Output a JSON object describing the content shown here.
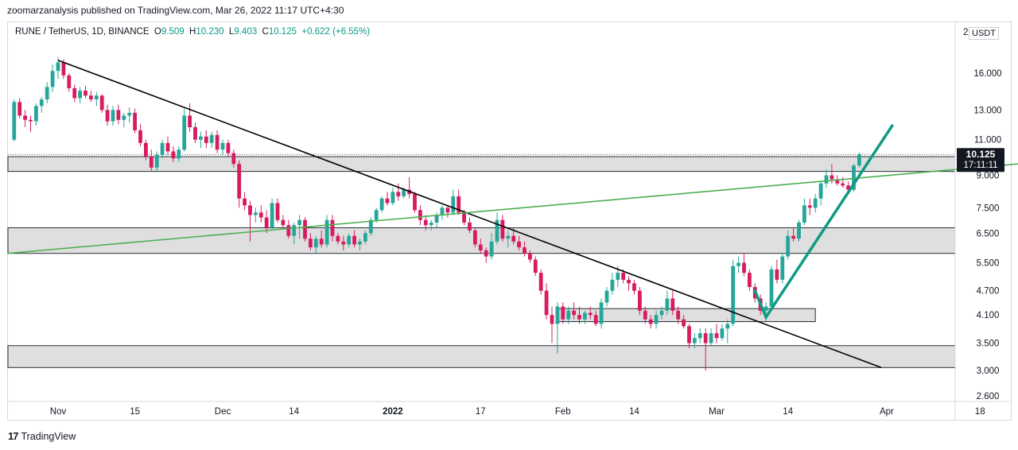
{
  "header": {
    "publisher_text": "zoomarzanalysis published on TradingView.com, Mar 26, 2022 11:17 UTC+4:30"
  },
  "legend": {
    "symbol": "RUNE / TetherUS, 1D, BINANCE",
    "open_label": "O",
    "open": "9.509",
    "high_label": "H",
    "high": "10.230",
    "low_label": "L",
    "low": "9.403",
    "close_label": "C",
    "close": "10.125",
    "change": "+0.622 (+6.55%)"
  },
  "currency_badge": "USDT",
  "price_axis_top_label": "2",
  "footer": {
    "logo": "17",
    "brand": "TradingView"
  },
  "colors": {
    "up": "#26a69a",
    "down": "#d81b60",
    "downtrend_line": "#000000",
    "uptrend_line": "#4caf50",
    "breakout_arrow": "#109a86",
    "zone_fill": "#d9d9d9"
  },
  "chart_data": {
    "type": "candlestick",
    "scale": "log",
    "interval": "1D",
    "y_ticks": [
      "16.000",
      "13.000",
      "11.000",
      "9.000",
      "7.500",
      "6.500",
      "5.500",
      "4.700",
      "4.100",
      "3.500",
      "3.000",
      "2.600"
    ],
    "y_tick_values": [
      16.0,
      13.0,
      11.0,
      9.0,
      7.5,
      6.5,
      5.5,
      4.7,
      4.1,
      3.5,
      3.0,
      2.6
    ],
    "x_ticks": [
      {
        "label": "Nov",
        "date": "2021-11-01",
        "bold": false
      },
      {
        "label": "15",
        "date": "2021-11-15",
        "bold": false
      },
      {
        "label": "Dec",
        "date": "2021-12-01",
        "bold": false
      },
      {
        "label": "14",
        "date": "2021-12-14",
        "bold": false
      },
      {
        "label": "2022",
        "date": "2022-01-01",
        "bold": true
      },
      {
        "label": "17",
        "date": "2022-01-17",
        "bold": false
      },
      {
        "label": "Feb",
        "date": "2022-02-01",
        "bold": false
      },
      {
        "label": "14",
        "date": "2022-02-14",
        "bold": false
      },
      {
        "label": "Mar",
        "date": "2022-03-01",
        "bold": false
      },
      {
        "label": "14",
        "date": "2022-03-14",
        "bold": false
      },
      {
        "label": "Apr",
        "date": "2022-04-01",
        "bold": false
      },
      {
        "label": "18",
        "date": "2022-04-18",
        "bold": false
      }
    ],
    "last_price": {
      "label": "10.125",
      "countdown": "17:11:11"
    },
    "candles": [
      [
        "2021-10-19",
        9.0,
        10.2,
        8.8,
        9.8
      ],
      [
        "2021-10-20",
        9.8,
        10.8,
        9.6,
        10.5
      ],
      [
        "2021-10-21",
        10.5,
        12.2,
        10.3,
        11.8
      ],
      [
        "2021-10-22",
        11.8,
        12.5,
        11.0,
        11.3
      ],
      [
        "2021-10-23",
        11.3,
        12.0,
        10.6,
        11.0
      ],
      [
        "2021-10-24",
        11.0,
        13.8,
        10.9,
        13.6
      ],
      [
        "2021-10-25",
        13.6,
        13.9,
        12.4,
        12.6
      ],
      [
        "2021-10-26",
        12.6,
        13.0,
        11.8,
        12.3
      ],
      [
        "2021-10-27",
        12.3,
        12.6,
        11.5,
        12.2
      ],
      [
        "2021-10-28",
        12.2,
        13.5,
        11.9,
        13.3
      ],
      [
        "2021-10-29",
        13.3,
        14.0,
        12.8,
        13.8
      ],
      [
        "2021-10-30",
        13.8,
        15.2,
        13.5,
        14.8
      ],
      [
        "2021-10-31",
        14.8,
        16.8,
        14.4,
        16.2
      ],
      [
        "2021-11-01",
        16.2,
        17.5,
        15.5,
        17.0
      ],
      [
        "2021-11-02",
        17.0,
        17.3,
        15.5,
        15.8
      ],
      [
        "2021-11-03",
        15.8,
        16.0,
        14.4,
        14.7
      ],
      [
        "2021-11-04",
        14.7,
        15.0,
        13.6,
        13.9
      ],
      [
        "2021-11-05",
        13.9,
        14.8,
        13.5,
        14.5
      ],
      [
        "2021-11-06",
        14.5,
        14.9,
        13.9,
        14.1
      ],
      [
        "2021-11-07",
        14.1,
        14.5,
        13.6,
        13.8
      ],
      [
        "2021-11-08",
        13.8,
        14.4,
        13.3,
        14.1
      ],
      [
        "2021-11-09",
        14.1,
        14.2,
        12.8,
        13.0
      ],
      [
        "2021-11-10",
        13.0,
        13.4,
        11.9,
        12.2
      ],
      [
        "2021-11-11",
        12.2,
        13.3,
        11.9,
        13.0
      ],
      [
        "2021-11-12",
        13.0,
        13.4,
        12.0,
        12.3
      ],
      [
        "2021-11-13",
        12.3,
        12.8,
        11.8,
        12.6
      ],
      [
        "2021-11-14",
        12.6,
        13.2,
        12.1,
        12.8
      ],
      [
        "2021-11-15",
        12.8,
        13.1,
        11.4,
        11.6
      ],
      [
        "2021-11-16",
        11.6,
        12.0,
        10.6,
        10.8
      ],
      [
        "2021-11-17",
        10.8,
        11.0,
        9.8,
        10.0
      ],
      [
        "2021-11-18",
        10.0,
        10.4,
        9.2,
        9.4
      ],
      [
        "2021-11-19",
        9.4,
        10.3,
        9.2,
        10.1
      ],
      [
        "2021-11-20",
        10.1,
        11.0,
        9.9,
        10.8
      ],
      [
        "2021-11-21",
        10.8,
        11.2,
        10.1,
        10.3
      ],
      [
        "2021-11-22",
        10.3,
        10.6,
        9.7,
        9.9
      ],
      [
        "2021-11-23",
        9.9,
        10.6,
        9.7,
        10.4
      ],
      [
        "2021-11-24",
        10.4,
        13.1,
        10.3,
        12.6
      ],
      [
        "2021-11-25",
        12.6,
        13.5,
        11.5,
        11.8
      ],
      [
        "2021-11-26",
        11.8,
        12.1,
        10.8,
        11.0
      ],
      [
        "2021-11-27",
        11.0,
        11.5,
        10.5,
        11.2
      ],
      [
        "2021-11-28",
        11.2,
        11.6,
        10.5,
        10.8
      ],
      [
        "2021-11-29",
        10.8,
        11.5,
        10.5,
        11.3
      ],
      [
        "2021-11-30",
        11.3,
        11.6,
        10.2,
        10.4
      ],
      [
        "2021-12-01",
        10.4,
        11.0,
        10.1,
        10.8
      ],
      [
        "2021-12-02",
        10.8,
        11.0,
        10.0,
        10.2
      ],
      [
        "2021-12-03",
        10.2,
        10.4,
        9.4,
        9.6
      ],
      [
        "2021-12-04",
        9.6,
        9.8,
        7.5,
        7.9
      ],
      [
        "2021-12-05",
        7.9,
        8.2,
        7.4,
        7.6
      ],
      [
        "2021-12-06",
        7.6,
        7.8,
        6.2,
        7.2
      ],
      [
        "2021-12-07",
        7.2,
        7.5,
        6.9,
        7.3
      ],
      [
        "2021-12-08",
        7.3,
        7.6,
        6.9,
        7.1
      ],
      [
        "2021-12-09",
        7.1,
        7.4,
        6.5,
        6.7
      ],
      [
        "2021-12-10",
        6.7,
        7.9,
        6.6,
        7.7
      ],
      [
        "2021-12-11",
        7.7,
        7.9,
        6.9,
        7.0
      ],
      [
        "2021-12-12",
        7.0,
        7.2,
        6.7,
        6.8
      ],
      [
        "2021-12-13",
        6.8,
        7.0,
        6.3,
        6.4
      ],
      [
        "2021-12-14",
        6.4,
        6.9,
        6.1,
        6.8
      ],
      [
        "2021-12-15",
        6.8,
        7.2,
        6.3,
        7.0
      ],
      [
        "2021-12-16",
        7.0,
        7.1,
        6.2,
        6.3
      ],
      [
        "2021-12-17",
        6.3,
        6.5,
        5.9,
        6.0
      ],
      [
        "2021-12-18",
        6.0,
        6.4,
        5.8,
        6.3
      ],
      [
        "2021-12-19",
        6.3,
        6.6,
        6.0,
        6.1
      ],
      [
        "2021-12-20",
        6.1,
        7.2,
        6.0,
        7.0
      ],
      [
        "2021-12-21",
        7.0,
        7.2,
        6.2,
        6.4
      ],
      [
        "2021-12-22",
        6.4,
        6.5,
        6.1,
        6.2
      ],
      [
        "2021-12-23",
        6.2,
        6.4,
        5.9,
        6.1
      ],
      [
        "2021-12-24",
        6.1,
        6.5,
        6.0,
        6.4
      ],
      [
        "2021-12-25",
        6.4,
        6.6,
        6.0,
        6.1
      ],
      [
        "2021-12-26",
        6.1,
        6.3,
        5.9,
        6.2
      ],
      [
        "2021-12-27",
        6.2,
        6.6,
        6.1,
        6.5
      ],
      [
        "2021-12-28",
        6.5,
        7.1,
        6.4,
        7.0
      ],
      [
        "2021-12-29",
        7.0,
        7.5,
        6.9,
        7.4
      ],
      [
        "2021-12-30",
        7.4,
        8.0,
        7.3,
        7.9
      ],
      [
        "2021-12-31",
        7.9,
        8.2,
        7.6,
        7.7
      ],
      [
        "2022-01-01",
        7.7,
        8.4,
        7.6,
        8.2
      ],
      [
        "2022-01-02",
        8.2,
        8.6,
        7.8,
        8.0
      ],
      [
        "2022-01-03",
        8.0,
        8.4,
        7.9,
        8.3
      ],
      [
        "2022-01-04",
        8.3,
        8.9,
        7.9,
        8.1
      ],
      [
        "2022-01-05",
        8.1,
        8.2,
        7.3,
        7.4
      ],
      [
        "2022-01-06",
        7.4,
        7.6,
        6.8,
        7.0
      ],
      [
        "2022-01-07",
        7.0,
        7.2,
        6.6,
        6.8
      ],
      [
        "2022-01-08",
        6.8,
        7.0,
        6.6,
        6.9
      ],
      [
        "2022-01-09",
        6.9,
        7.3,
        6.7,
        7.2
      ],
      [
        "2022-01-10",
        7.2,
        7.6,
        7.0,
        7.5
      ],
      [
        "2022-01-11",
        7.5,
        7.6,
        7.1,
        7.3
      ],
      [
        "2022-01-12",
        7.3,
        8.3,
        7.2,
        8.0
      ],
      [
        "2022-01-13",
        8.0,
        8.3,
        7.2,
        7.3
      ],
      [
        "2022-01-14",
        7.3,
        7.4,
        6.8,
        6.9
      ],
      [
        "2022-01-15",
        6.9,
        7.1,
        6.5,
        6.6
      ],
      [
        "2022-01-16",
        6.6,
        6.7,
        6.0,
        6.1
      ],
      [
        "2022-01-17",
        6.1,
        6.3,
        5.8,
        5.9
      ],
      [
        "2022-01-18",
        5.9,
        6.0,
        5.5,
        5.7
      ],
      [
        "2022-01-19",
        5.7,
        6.5,
        5.6,
        6.2
      ],
      [
        "2022-01-20",
        6.2,
        7.3,
        6.1,
        7.0
      ],
      [
        "2022-01-21",
        7.0,
        7.2,
        6.2,
        6.3
      ],
      [
        "2022-01-22",
        6.3,
        6.6,
        6.0,
        6.4
      ],
      [
        "2022-01-23",
        6.4,
        6.7,
        6.1,
        6.2
      ],
      [
        "2022-01-24",
        6.2,
        6.4,
        5.9,
        6.0
      ],
      [
        "2022-01-25",
        6.0,
        6.2,
        5.7,
        5.8
      ],
      [
        "2022-01-26",
        5.8,
        5.9,
        5.5,
        5.6
      ],
      [
        "2022-01-27",
        5.6,
        5.7,
        5.1,
        5.2
      ],
      [
        "2022-01-28",
        5.2,
        5.3,
        4.6,
        4.7
      ],
      [
        "2022-01-29",
        4.7,
        4.9,
        4.0,
        4.1
      ],
      [
        "2022-01-30",
        4.1,
        4.3,
        3.5,
        3.9
      ],
      [
        "2022-01-31",
        3.9,
        4.4,
        3.3,
        4.3
      ],
      [
        "2022-02-01",
        4.3,
        4.4,
        3.9,
        4.0
      ],
      [
        "2022-02-02",
        4.0,
        4.3,
        3.9,
        4.2
      ],
      [
        "2022-02-03",
        4.2,
        4.4,
        4.0,
        4.1
      ],
      [
        "2022-02-04",
        4.1,
        4.3,
        3.9,
        4.0
      ],
      [
        "2022-02-05",
        4.0,
        4.2,
        3.9,
        4.15
      ],
      [
        "2022-02-06",
        4.15,
        4.3,
        4.0,
        4.1
      ],
      [
        "2022-02-07",
        4.1,
        4.2,
        3.85,
        3.9
      ],
      [
        "2022-02-08",
        3.9,
        4.5,
        3.8,
        4.4
      ],
      [
        "2022-02-09",
        4.4,
        4.8,
        4.3,
        4.7
      ],
      [
        "2022-02-10",
        4.7,
        5.2,
        4.6,
        5.0
      ],
      [
        "2022-02-11",
        5.0,
        5.4,
        4.8,
        5.2
      ],
      [
        "2022-02-12",
        5.2,
        5.3,
        4.9,
        5.0
      ],
      [
        "2022-02-13",
        5.0,
        5.1,
        4.7,
        4.9
      ],
      [
        "2022-02-14",
        4.9,
        5.0,
        4.6,
        4.7
      ],
      [
        "2022-02-15",
        4.7,
        4.8,
        4.1,
        4.2
      ],
      [
        "2022-02-16",
        4.2,
        4.3,
        3.9,
        4.0
      ],
      [
        "2022-02-17",
        4.0,
        4.1,
        3.8,
        3.9
      ],
      [
        "2022-02-18",
        3.9,
        4.2,
        3.8,
        4.1
      ],
      [
        "2022-02-19",
        4.1,
        4.3,
        4.0,
        4.2
      ],
      [
        "2022-02-20",
        4.2,
        4.7,
        4.1,
        4.5
      ],
      [
        "2022-02-21",
        4.5,
        4.7,
        4.1,
        4.2
      ],
      [
        "2022-02-22",
        4.2,
        4.3,
        3.9,
        4.0
      ],
      [
        "2022-02-23",
        4.0,
        4.1,
        3.8,
        3.85
      ],
      [
        "2022-02-24",
        3.85,
        3.9,
        3.4,
        3.5
      ],
      [
        "2022-02-25",
        3.5,
        3.7,
        3.4,
        3.6
      ],
      [
        "2022-02-26",
        3.6,
        3.8,
        3.5,
        3.7
      ],
      [
        "2022-02-27",
        3.7,
        3.8,
        3.0,
        3.5
      ],
      [
        "2022-02-28",
        3.5,
        3.8,
        3.45,
        3.7
      ],
      [
        "2022-03-01",
        3.7,
        3.9,
        3.5,
        3.6
      ],
      [
        "2022-03-02",
        3.6,
        3.9,
        3.55,
        3.8
      ],
      [
        "2022-03-03",
        3.8,
        4.0,
        3.5,
        3.9
      ],
      [
        "2022-03-04",
        3.9,
        5.6,
        3.85,
        5.4
      ],
      [
        "2022-03-05",
        5.4,
        5.7,
        5.2,
        5.5
      ],
      [
        "2022-03-06",
        5.5,
        5.8,
        5.1,
        5.2
      ],
      [
        "2022-03-07",
        5.2,
        5.3,
        4.7,
        4.8
      ],
      [
        "2022-03-08",
        4.8,
        4.9,
        4.4,
        4.5
      ],
      [
        "2022-03-09",
        4.5,
        4.6,
        4.1,
        4.2
      ],
      [
        "2022-03-10",
        4.2,
        4.4,
        3.95,
        4.3
      ],
      [
        "2022-03-11",
        4.3,
        5.4,
        4.2,
        5.3
      ],
      [
        "2022-03-12",
        5.3,
        5.6,
        4.9,
        5.0
      ],
      [
        "2022-03-13",
        5.0,
        5.8,
        4.9,
        5.7
      ],
      [
        "2022-03-14",
        5.7,
        6.6,
        5.6,
        6.4
      ],
      [
        "2022-03-15",
        6.4,
        6.7,
        6.2,
        6.3
      ],
      [
        "2022-03-16",
        6.3,
        7.0,
        6.2,
        6.9
      ],
      [
        "2022-03-17",
        6.9,
        7.9,
        6.8,
        7.6
      ],
      [
        "2022-03-18",
        7.6,
        7.9,
        7.2,
        7.5
      ],
      [
        "2022-03-19",
        7.5,
        8.1,
        7.3,
        7.9
      ],
      [
        "2022-03-20",
        7.9,
        8.7,
        7.6,
        8.6
      ],
      [
        "2022-03-21",
        8.6,
        9.3,
        8.4,
        9.0
      ],
      [
        "2022-03-22",
        9.0,
        9.6,
        8.6,
        8.8
      ],
      [
        "2022-03-23",
        8.8,
        9.0,
        8.5,
        8.6
      ],
      [
        "2022-03-24",
        8.6,
        8.9,
        8.4,
        8.5
      ],
      [
        "2022-03-25",
        8.5,
        8.7,
        8.1,
        8.3
      ],
      [
        "2022-03-26",
        8.3,
        9.6,
        8.2,
        9.509
      ],
      [
        "2022-03-27",
        9.509,
        10.23,
        9.403,
        10.125
      ]
    ],
    "annotations": [
      {
        "type": "trendline",
        "name": "downtrend",
        "color": "#000000",
        "from": [
          "2021-11-01",
          17.2
        ],
        "to": [
          "2022-03-31",
          3.05
        ]
      },
      {
        "type": "trendline",
        "name": "uptrend",
        "color": "#4caf50",
        "from": [
          "2021-10-18",
          5.8
        ],
        "to": [
          "2022-04-25",
          9.6
        ]
      },
      {
        "type": "zone",
        "name": "zone-top",
        "from_date": "2021-10-18",
        "to_date": "2022-04-25",
        "low": 9.2,
        "high": 10.0
      },
      {
        "type": "zone",
        "name": "zone-middle",
        "from_date": "2021-10-18",
        "to_date": "2022-04-25",
        "low": 5.8,
        "high": 6.7
      },
      {
        "type": "zone",
        "name": "zone-small",
        "from_date": "2022-01-31",
        "to_date": "2022-03-19",
        "low": 3.95,
        "high": 4.25
      },
      {
        "type": "zone",
        "name": "zone-bottom",
        "from_date": "2021-10-18",
        "to_date": "2022-04-25",
        "low": 3.05,
        "high": 3.45
      },
      {
        "type": "arrow",
        "name": "breakout-arrow",
        "color": "#109a86",
        "from": [
          "2022-03-08",
          4.7
        ],
        "via": [
          "2022-03-10",
          4.05
        ],
        "to": [
          "2022-04-02",
          11.9
        ]
      },
      {
        "type": "hline",
        "name": "last-price-line",
        "style": "dotted",
        "value": 10.125
      }
    ]
  }
}
